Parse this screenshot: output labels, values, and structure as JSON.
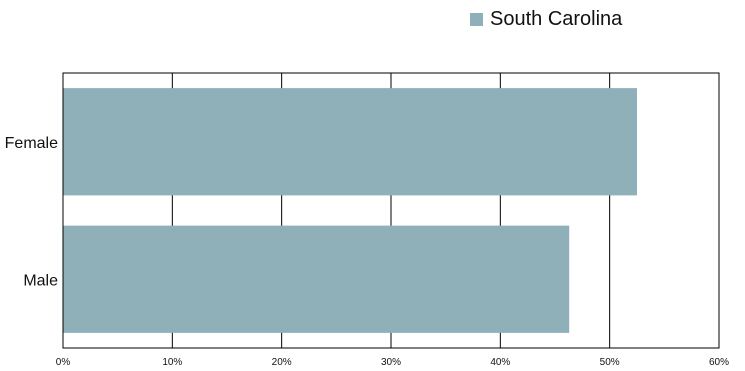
{
  "chart_data": {
    "type": "bar",
    "orientation": "horizontal",
    "categories": [
      "Female",
      "Male"
    ],
    "series": [
      {
        "name": "South Carolina",
        "values": [
          52.5,
          46.3
        ],
        "color": "#8fafb9"
      }
    ],
    "xlim": [
      0,
      60
    ],
    "xticks": [
      0,
      10,
      20,
      30,
      40,
      50,
      60
    ],
    "tick_suffix": "%",
    "grid": true,
    "legend": "top-right"
  }
}
